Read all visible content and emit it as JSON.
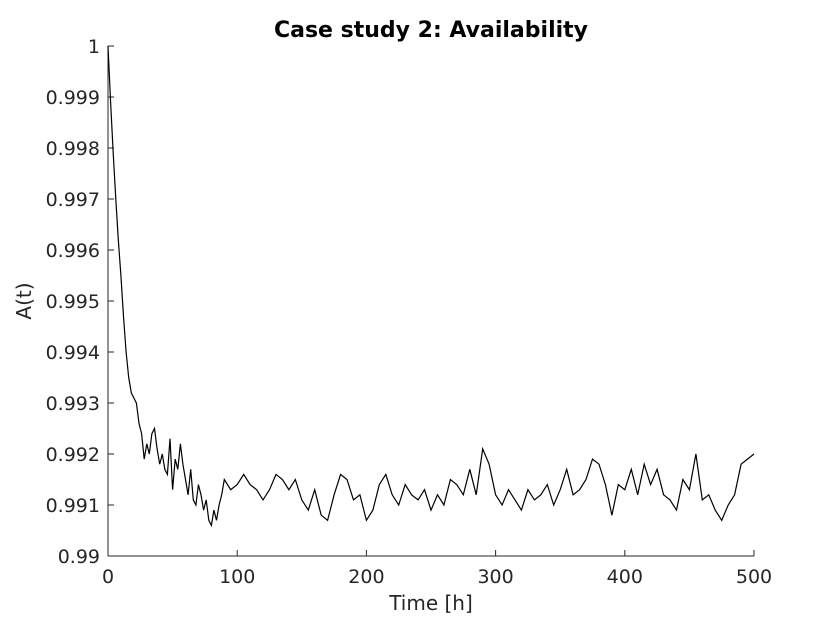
{
  "chart_data": {
    "type": "line",
    "title": "Case study 2: Availability",
    "xlabel": "Time [h]",
    "ylabel": "A(t)",
    "xlim": [
      0,
      500
    ],
    "ylim": [
      0.99,
      1.0
    ],
    "xticks": [
      0,
      100,
      200,
      300,
      400,
      500
    ],
    "xtick_labels": [
      "0",
      "100",
      "200",
      "300",
      "400",
      "500"
    ],
    "yticks": [
      0.99,
      0.991,
      0.992,
      0.993,
      0.994,
      0.995,
      0.996,
      0.997,
      0.998,
      0.999,
      1.0
    ],
    "ytick_labels": [
      "0.99",
      "0.991",
      "0.992",
      "0.993",
      "0.994",
      "0.995",
      "0.996",
      "0.997",
      "0.998",
      "0.999",
      "1"
    ],
    "grid": false,
    "series": [
      {
        "color": "#000000",
        "x": [
          0,
          2,
          4,
          6,
          8,
          10,
          12,
          14,
          16,
          18,
          20,
          22,
          24,
          26,
          28,
          30,
          32,
          34,
          36,
          38,
          40,
          42,
          44,
          46,
          48,
          50,
          52,
          54,
          56,
          58,
          60,
          62,
          64,
          66,
          68,
          70,
          72,
          74,
          76,
          78,
          80,
          82,
          84,
          86,
          88,
          90,
          95,
          100,
          105,
          110,
          115,
          120,
          125,
          130,
          135,
          140,
          145,
          150,
          155,
          160,
          165,
          170,
          175,
          180,
          185,
          190,
          195,
          200,
          205,
          210,
          215,
          220,
          225,
          230,
          235,
          240,
          245,
          250,
          255,
          260,
          265,
          270,
          275,
          280,
          285,
          290,
          295,
          300,
          305,
          310,
          315,
          320,
          325,
          330,
          335,
          340,
          345,
          350,
          355,
          360,
          365,
          370,
          375,
          380,
          385,
          390,
          395,
          400,
          405,
          410,
          415,
          420,
          425,
          430,
          435,
          440,
          445,
          450,
          455,
          460,
          465,
          470,
          475,
          480,
          485,
          490,
          495,
          500
        ],
        "y": [
          1.0,
          0.9989,
          0.9979,
          0.997,
          0.9962,
          0.9955,
          0.9947,
          0.994,
          0.9935,
          0.9932,
          0.9931,
          0.993,
          0.9926,
          0.9924,
          0.9919,
          0.9922,
          0.992,
          0.9924,
          0.9925,
          0.9921,
          0.9918,
          0.992,
          0.9917,
          0.9916,
          0.9923,
          0.9913,
          0.9919,
          0.9917,
          0.9922,
          0.9918,
          0.9915,
          0.9912,
          0.9917,
          0.9911,
          0.991,
          0.9914,
          0.9912,
          0.9909,
          0.9911,
          0.9907,
          0.9906,
          0.9909,
          0.9907,
          0.991,
          0.9912,
          0.9915,
          0.9913,
          0.9914,
          0.9916,
          0.9914,
          0.9913,
          0.9911,
          0.9913,
          0.9916,
          0.9915,
          0.9913,
          0.9915,
          0.9911,
          0.9909,
          0.9913,
          0.9908,
          0.9907,
          0.9912,
          0.9916,
          0.9915,
          0.9911,
          0.9912,
          0.9907,
          0.9909,
          0.9914,
          0.9916,
          0.9912,
          0.991,
          0.9914,
          0.9912,
          0.9911,
          0.9913,
          0.9909,
          0.9912,
          0.991,
          0.9915,
          0.9914,
          0.9912,
          0.9917,
          0.9912,
          0.9921,
          0.9918,
          0.9912,
          0.991,
          0.9913,
          0.9911,
          0.9909,
          0.9913,
          0.9911,
          0.9912,
          0.9914,
          0.991,
          0.9913,
          0.9917,
          0.9912,
          0.9913,
          0.9915,
          0.9919,
          0.9918,
          0.9914,
          0.9908,
          0.9914,
          0.9913,
          0.9917,
          0.9912,
          0.9918,
          0.9914,
          0.9917,
          0.9912,
          0.9911,
          0.9909,
          0.9915,
          0.9913,
          0.992,
          0.9911,
          0.9912,
          0.9909,
          0.9907,
          0.991,
          0.9912,
          0.9918,
          0.9919,
          0.992
        ]
      }
    ]
  }
}
